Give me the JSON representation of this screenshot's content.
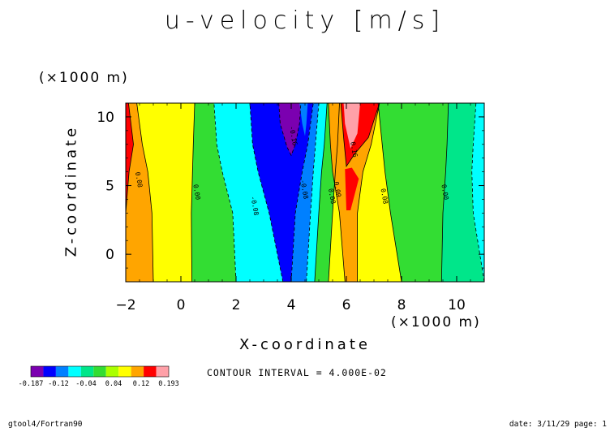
{
  "chart_data": {
    "type": "heatmap",
    "title": "u-velocity [m/s]",
    "xlabel": "X-coordinate",
    "ylabel": "Z-coordinate",
    "x_unit_label": "(×1000 m)",
    "y_unit_label": "(×1000 m)",
    "xlim": [
      -2,
      11
    ],
    "ylim": [
      -2,
      11
    ],
    "x_ticks": [
      -2,
      0,
      2,
      4,
      6,
      8,
      10
    ],
    "y_ticks": [
      0,
      5,
      10
    ],
    "x_tick_labels": [
      "−2",
      "0",
      "2",
      "4",
      "6",
      "8",
      "10"
    ],
    "y_tick_labels": [
      "0",
      "5",
      "10"
    ],
    "contour_interval_text": "CONTOUR INTERVAL = 4.000E-02",
    "colorbar": {
      "colors": [
        "#7b00b0",
        "#0000ff",
        "#0080ff",
        "#00ffff",
        "#00e68a",
        "#33dd33",
        "#aaff00",
        "#ffff00",
        "#ffa500",
        "#ff0000",
        "#ffa0a8"
      ],
      "tick_labels": [
        "-0.187",
        "-0.12",
        "-0.04",
        "0.04",
        "0.12",
        "0.193"
      ],
      "min": -0.187,
      "max": 0.193
    },
    "contour_labels": [
      {
        "text": "0.08",
        "x": -1.6,
        "z": 5.4
      },
      {
        "text": "0.00",
        "x": 0.5,
        "z": 4.5
      },
      {
        "text": "-0.08",
        "x": 2.6,
        "z": 3.5
      },
      {
        "text": "-0.16",
        "x": 4.0,
        "z": 8.6
      },
      {
        "text": "-0.08",
        "x": 4.4,
        "z": 4.7
      },
      {
        "text": "0.00",
        "x": 5.6,
        "z": 4.7
      },
      {
        "text": "0.08",
        "x": 5.4,
        "z": 4.2
      },
      {
        "text": "0.16",
        "x": 6.2,
        "z": 7.6
      },
      {
        "text": "0.08",
        "x": 7.3,
        "z": 4.2
      },
      {
        "text": "0.00",
        "x": 9.5,
        "z": 4.5
      }
    ]
  },
  "footer": {
    "left": "gtool4/Fortran90",
    "right": "date: 3/11/29 page: 1"
  }
}
